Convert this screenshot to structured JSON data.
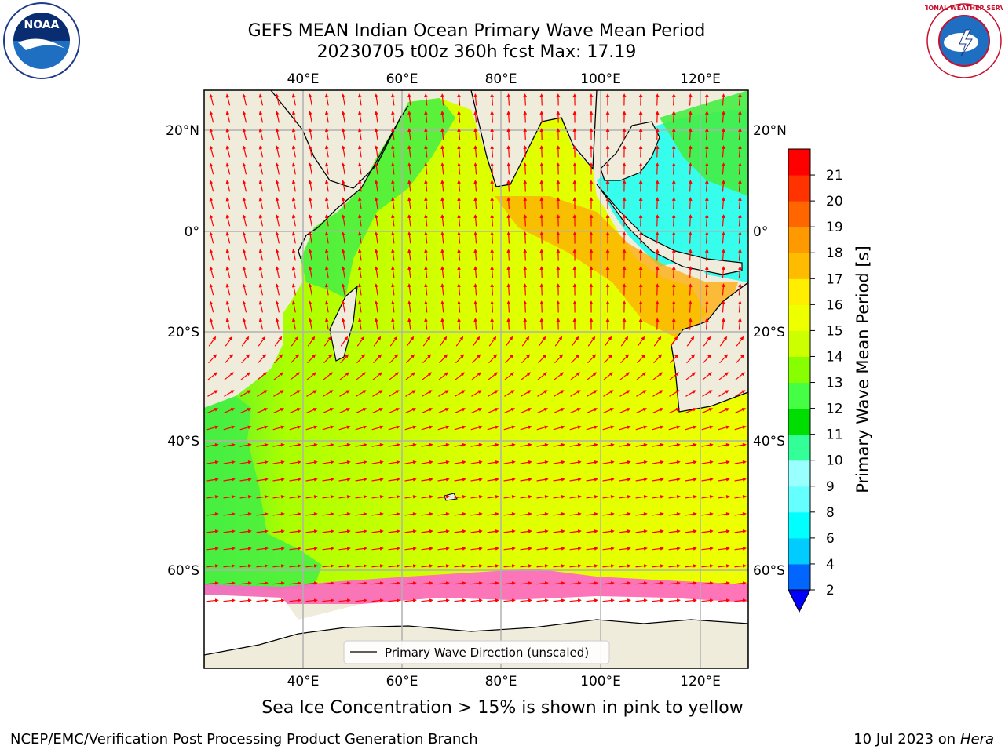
{
  "header": {
    "title": "GEFS MEAN Indian Ocean Primary Wave Mean Period",
    "subtitle": "20230705 t00z 360h fcst   Max: 17.19"
  },
  "map": {
    "lon_labels": [
      "40°E",
      "60°E",
      "80°E",
      "100°E",
      "120°E"
    ],
    "lat_labels": [
      "20°N",
      "0°",
      "20°S",
      "40°S",
      "60°S"
    ],
    "legend_label": "Primary Wave Direction (unscaled)",
    "arrow_color": "#ff0000",
    "land_color": "#efecdc",
    "ice_color": "#ffffff"
  },
  "colorbar": {
    "label": "Primary Wave Mean Period [s]",
    "ticks": [
      "2",
      "4",
      "6",
      "8",
      "9",
      "10",
      "11",
      "12",
      "13",
      "14",
      "15",
      "16",
      "17",
      "18",
      "19",
      "20",
      "21"
    ],
    "colors": [
      "#0066ff",
      "#00ccff",
      "#00ffff",
      "#66ffff",
      "#99ffff",
      "#33ff99",
      "#00dd00",
      "#44ff44",
      "#88ff00",
      "#ccff00",
      "#eeff00",
      "#ffee00",
      "#ffbb00",
      "#ff9900",
      "#ff6600",
      "#ff3300",
      "#ff0000"
    ],
    "extend_color": "#0000ff"
  },
  "caption": "Sea Ice Concentration > 15% is shown in pink to yellow",
  "footer": {
    "left": "NCEP/EMC/Verification Post Processing Product Generation Branch",
    "right_date": "10 Jul 2023 on ",
    "right_host": "Hera"
  },
  "logos": {
    "noaa_text": "NOAA",
    "nws_text": "NATIONAL WEATHER SERVICE"
  }
}
